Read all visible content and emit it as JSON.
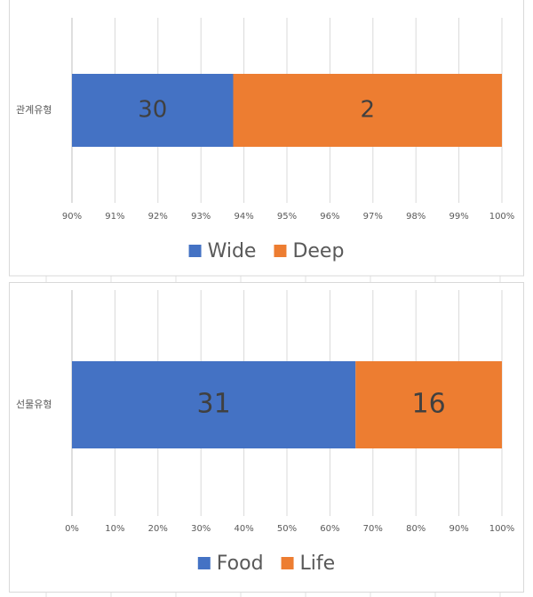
{
  "chart_data": [
    {
      "type": "bar",
      "orientation": "horizontal",
      "stacking": "percent",
      "categories": [
        "관계유형"
      ],
      "series": [
        {
          "name": "Wide",
          "color": "#4472c4",
          "values": [
            30
          ]
        },
        {
          "name": "Deep",
          "color": "#ed7d31",
          "values": [
            2
          ]
        }
      ],
      "xlim": [
        90,
        100
      ],
      "xticks": [
        {
          "value": 90,
          "label": "90%"
        },
        {
          "value": 91,
          "label": "91%"
        },
        {
          "value": 92,
          "label": "92%"
        },
        {
          "value": 93,
          "label": "93%"
        },
        {
          "value": 94,
          "label": "94%"
        },
        {
          "value": 95,
          "label": "95%"
        },
        {
          "value": 96,
          "label": "96%"
        },
        {
          "value": 97,
          "label": "97%"
        },
        {
          "value": 98,
          "label": "98%"
        },
        {
          "value": 99,
          "label": "99%"
        },
        {
          "value": 100,
          "label": "100%"
        }
      ],
      "grid": true,
      "legend": "bottom"
    },
    {
      "type": "bar",
      "orientation": "horizontal",
      "stacking": "percent",
      "categories": [
        "선물유형"
      ],
      "series": [
        {
          "name": "Food",
          "color": "#4472c4",
          "values": [
            31
          ]
        },
        {
          "name": "Life",
          "color": "#ed7d31",
          "values": [
            16
          ]
        }
      ],
      "xlim": [
        0,
        100
      ],
      "xticks": [
        {
          "value": 0,
          "label": "0%"
        },
        {
          "value": 10,
          "label": "10%"
        },
        {
          "value": 20,
          "label": "20%"
        },
        {
          "value": 30,
          "label": "30%"
        },
        {
          "value": 40,
          "label": "40%"
        },
        {
          "value": 50,
          "label": "50%"
        },
        {
          "value": 60,
          "label": "60%"
        },
        {
          "value": 70,
          "label": "70%"
        },
        {
          "value": 80,
          "label": "80%"
        },
        {
          "value": 90,
          "label": "90%"
        },
        {
          "value": 100,
          "label": "100%"
        }
      ],
      "grid": true,
      "legend": "bottom"
    }
  ]
}
